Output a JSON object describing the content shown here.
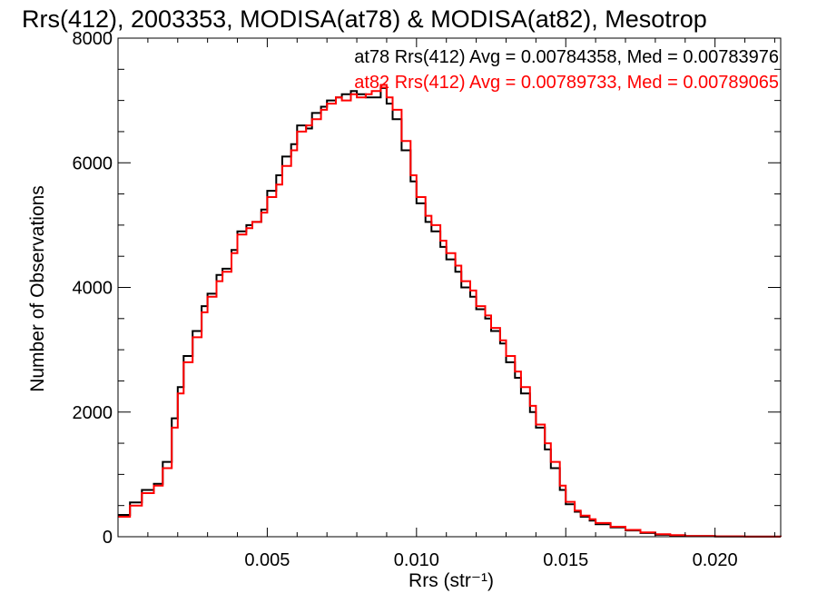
{
  "chart_data": {
    "type": "line",
    "step": true,
    "title": "Rrs(412), 2003353, MODISA(at78) & MODISA(at82), Mesotrop",
    "xlabel": "Rrs (str⁻¹)",
    "ylabel": "Number of Observations",
    "xlim": [
      0.0,
      0.0222
    ],
    "ylim": [
      0,
      8000
    ],
    "xticks": [
      0.005,
      0.01,
      0.015,
      0.02
    ],
    "xtick_labels": [
      "0.005",
      "0.010",
      "0.015",
      "0.020"
    ],
    "yticks": [
      0,
      2000,
      4000,
      6000,
      8000
    ],
    "ytick_labels": [
      "0",
      "2000",
      "4000",
      "6000",
      "8000"
    ],
    "grid": false,
    "legend_placement": "top-right",
    "legend": [
      "at78 Rrs(412) Avg = 0.00784358, Med = 0.00783976",
      "at82 Rrs(412) Avg = 0.00789733, Med = 0.00789065"
    ],
    "series": [
      {
        "name": "at78",
        "color": "#000000",
        "x": [
          0.0,
          0.0004,
          0.0008,
          0.0012,
          0.0015,
          0.0018,
          0.002,
          0.0022,
          0.0025,
          0.0028,
          0.003,
          0.0033,
          0.0035,
          0.0038,
          0.004,
          0.0043,
          0.0045,
          0.0048,
          0.005,
          0.0053,
          0.0055,
          0.0058,
          0.006,
          0.0063,
          0.0065,
          0.0068,
          0.007,
          0.0073,
          0.0075,
          0.0078,
          0.008,
          0.0083,
          0.0085,
          0.0088,
          0.009,
          0.0092,
          0.0095,
          0.0098,
          0.01,
          0.0103,
          0.0105,
          0.0108,
          0.011,
          0.0113,
          0.0115,
          0.0118,
          0.012,
          0.0123,
          0.0125,
          0.0128,
          0.013,
          0.0133,
          0.0135,
          0.0138,
          0.014,
          0.0143,
          0.0145,
          0.0148,
          0.015,
          0.0153,
          0.0155,
          0.0158,
          0.016,
          0.0165,
          0.017,
          0.0175,
          0.018,
          0.0185,
          0.019,
          0.02,
          0.021,
          0.0222
        ],
        "values": [
          350,
          550,
          750,
          850,
          1200,
          1900,
          2400,
          2900,
          3300,
          3700,
          3900,
          4200,
          4300,
          4600,
          4900,
          5000,
          5050,
          5250,
          5550,
          5800,
          6100,
          6300,
          6600,
          6550,
          6800,
          6900,
          7000,
          7050,
          7100,
          7150,
          7100,
          7050,
          7050,
          7200,
          6950,
          6700,
          6200,
          5700,
          5350,
          5050,
          4900,
          4650,
          4450,
          4250,
          4000,
          3850,
          3650,
          3500,
          3300,
          3100,
          2800,
          2550,
          2300,
          2000,
          1750,
          1400,
          1100,
          750,
          520,
          400,
          320,
          260,
          200,
          150,
          100,
          60,
          30,
          20,
          10,
          5,
          2,
          0
        ]
      },
      {
        "name": "at82",
        "color": "#ff0000",
        "x": [
          0.0,
          0.0004,
          0.0008,
          0.0012,
          0.0015,
          0.0018,
          0.002,
          0.0022,
          0.0025,
          0.0028,
          0.003,
          0.0033,
          0.0035,
          0.0038,
          0.004,
          0.0043,
          0.0045,
          0.0048,
          0.005,
          0.0053,
          0.0055,
          0.0058,
          0.006,
          0.0063,
          0.0065,
          0.0068,
          0.007,
          0.0073,
          0.0075,
          0.0078,
          0.008,
          0.0083,
          0.0085,
          0.0088,
          0.009,
          0.0092,
          0.0095,
          0.0098,
          0.01,
          0.0103,
          0.0105,
          0.0108,
          0.011,
          0.0113,
          0.0115,
          0.0118,
          0.012,
          0.0123,
          0.0125,
          0.0128,
          0.013,
          0.0133,
          0.0135,
          0.0138,
          0.014,
          0.0143,
          0.0145,
          0.0148,
          0.015,
          0.0153,
          0.0155,
          0.0158,
          0.016,
          0.0165,
          0.017,
          0.0175,
          0.018,
          0.0185,
          0.019,
          0.02,
          0.021,
          0.0222
        ],
        "values": [
          320,
          500,
          700,
          820,
          1100,
          1750,
          2300,
          2800,
          3200,
          3600,
          3850,
          4100,
          4250,
          4550,
          4850,
          4950,
          5050,
          5200,
          5450,
          5650,
          5950,
          6200,
          6500,
          6600,
          6700,
          6850,
          6950,
          7050,
          7000,
          7100,
          7050,
          7100,
          7150,
          7250,
          7050,
          6850,
          6350,
          5800,
          5450,
          5150,
          5000,
          4750,
          4550,
          4350,
          4100,
          3950,
          3700,
          3550,
          3350,
          3150,
          2900,
          2650,
          2400,
          2100,
          1800,
          1500,
          1200,
          820,
          560,
          420,
          340,
          280,
          220,
          160,
          110,
          70,
          40,
          25,
          12,
          6,
          2,
          0
        ]
      }
    ]
  }
}
